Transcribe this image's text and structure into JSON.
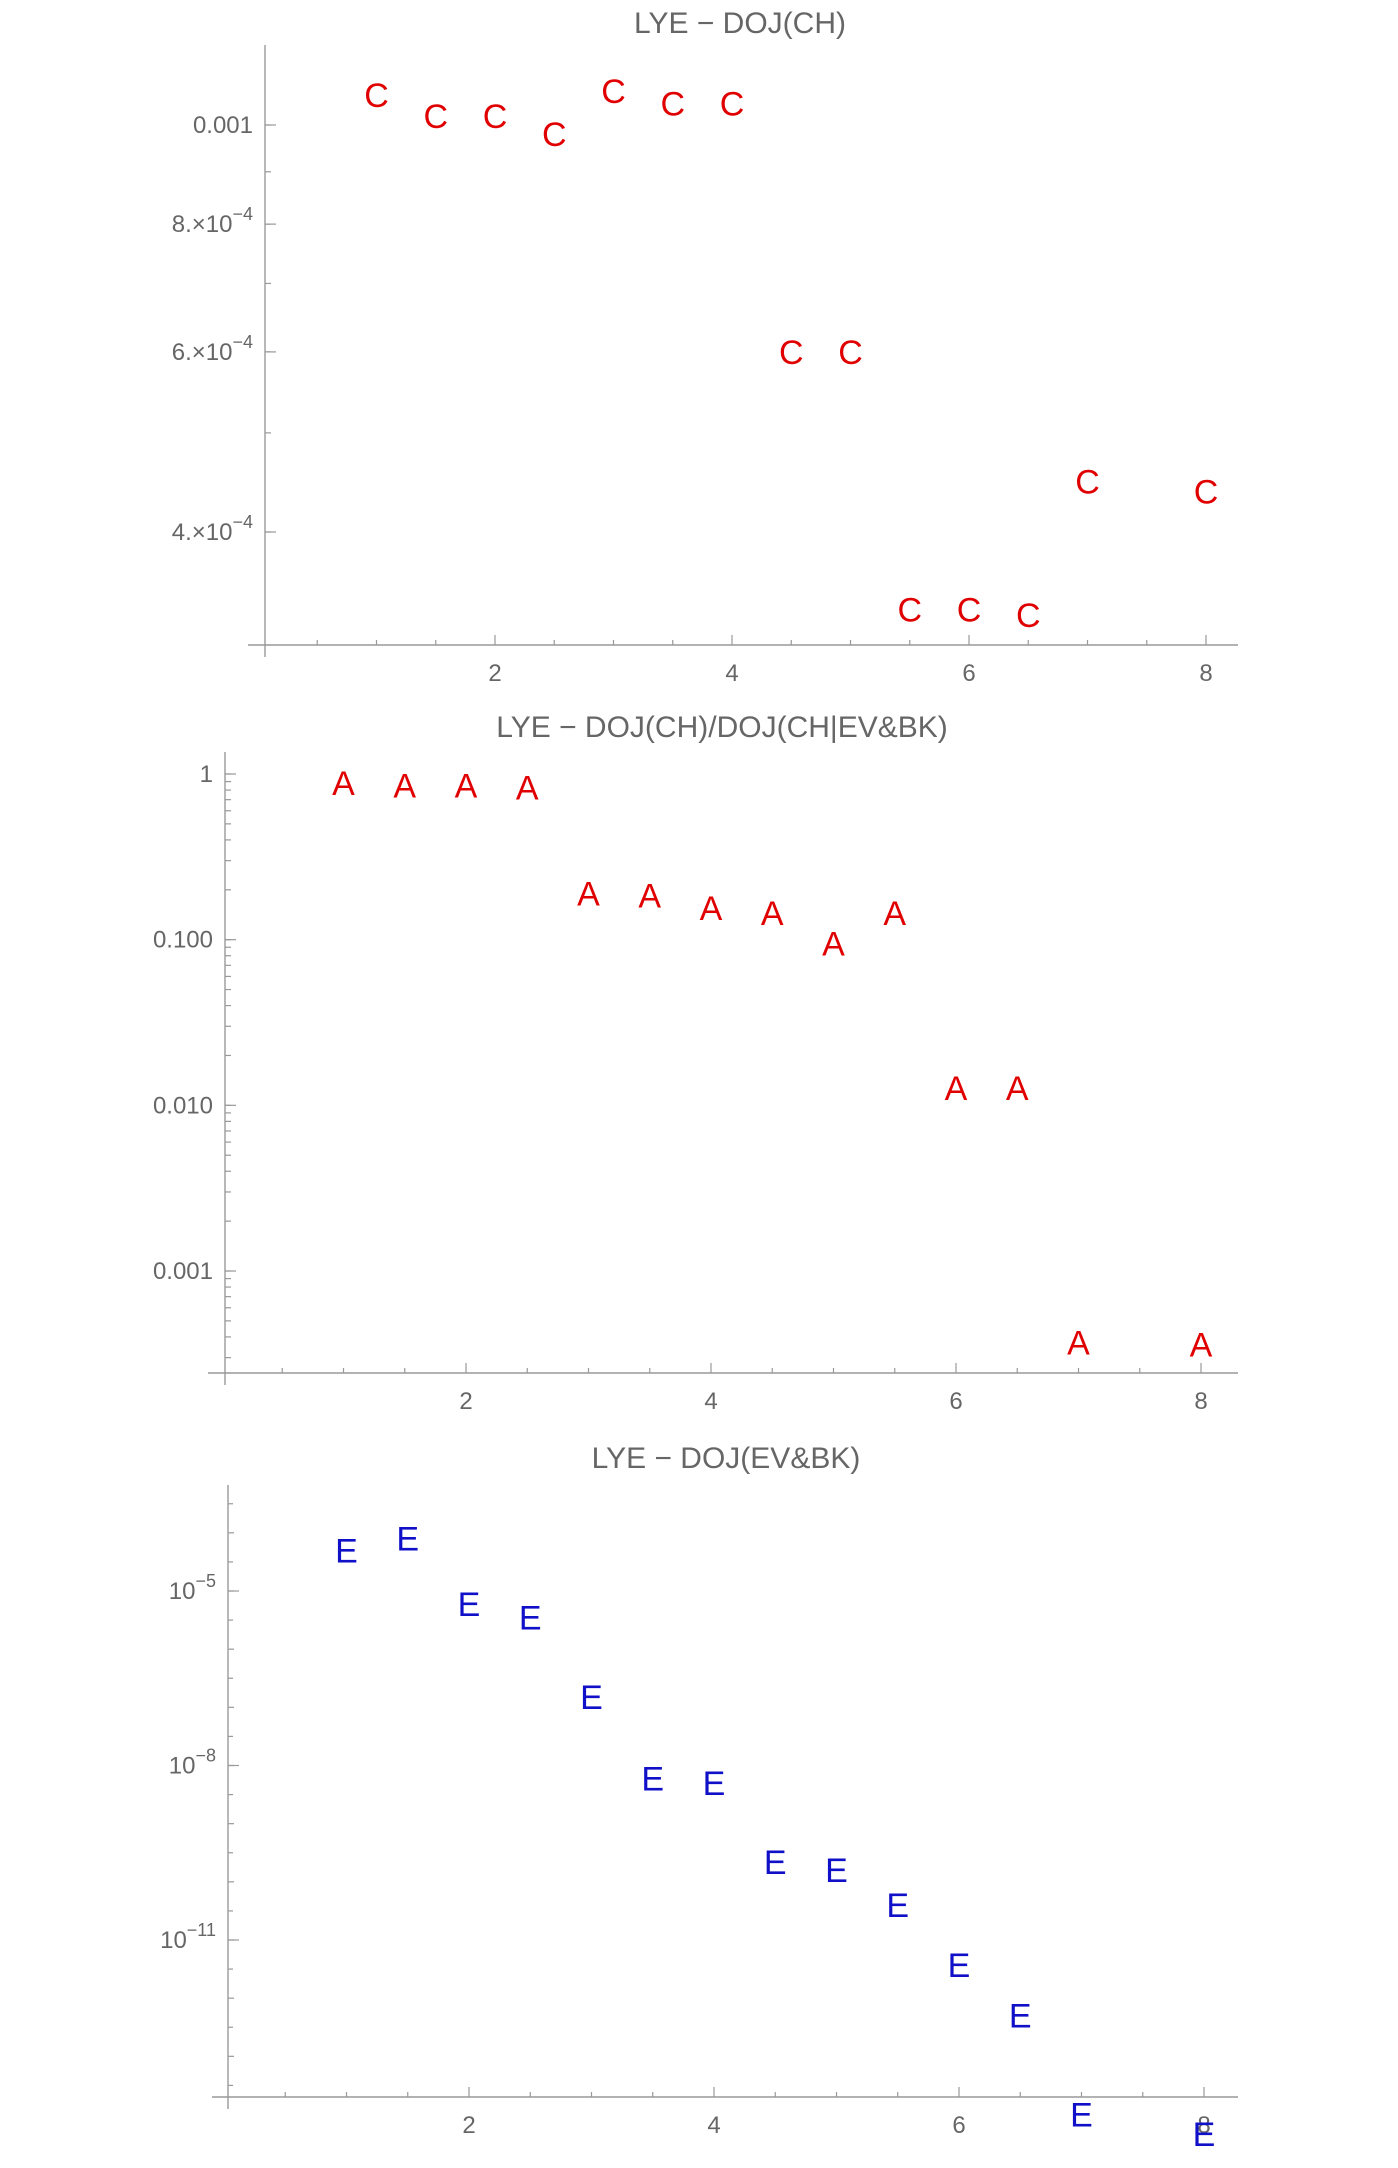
{
  "chart_data": [
    {
      "type": "scatter",
      "title": "LYE − DOJ(CH)",
      "marker": "C",
      "color": "#e00000",
      "yscale": "log",
      "x": [
        1,
        1.5,
        2,
        2.5,
        3,
        3.5,
        4,
        4.5,
        5,
        5.5,
        6,
        6.5,
        7,
        8
      ],
      "y": [
        0.00107,
        0.00102,
        0.00102,
        0.00098,
        0.00108,
        0.00105,
        0.00105,
        0.0006,
        0.0006,
        0.000336,
        0.000336,
        0.000332,
        0.000448,
        0.000438
      ],
      "xticks": [
        {
          "v": 2,
          "label": "2"
        },
        {
          "v": 4,
          "label": "4"
        },
        {
          "v": 6,
          "label": "6"
        },
        {
          "v": 8,
          "label": "8"
        }
      ],
      "yticks": [
        {
          "v": 0.001,
          "base": "0.001"
        },
        {
          "v": 0.0008,
          "base": "8.×10",
          "exp": "−4"
        },
        {
          "v": 0.0006,
          "base": "6.×10",
          "exp": "−4"
        },
        {
          "v": 0.0004,
          "base": "4.×10",
          "exp": "−4"
        }
      ]
    },
    {
      "type": "scatter",
      "title": "LYE − DOJ(CH)/DOJ(CH|EV&BK)",
      "marker": "A",
      "color": "#e00000",
      "yscale": "log",
      "x": [
        1,
        1.5,
        2,
        2.5,
        3,
        3.5,
        4,
        4.5,
        5,
        5.5,
        6,
        6.5,
        7,
        8
      ],
      "y": [
        0.88,
        0.85,
        0.85,
        0.83,
        0.19,
        0.185,
        0.155,
        0.145,
        0.095,
        0.145,
        0.0127,
        0.0127,
        0.00037,
        0.00036
      ],
      "xticks": [
        {
          "v": 2,
          "label": "2"
        },
        {
          "v": 4,
          "label": "4"
        },
        {
          "v": 6,
          "label": "6"
        },
        {
          "v": 8,
          "label": "8"
        }
      ],
      "yticks": [
        {
          "v": 1,
          "base": "1"
        },
        {
          "v": 0.1,
          "base": "0.100"
        },
        {
          "v": 0.01,
          "base": "0.010"
        },
        {
          "v": 0.001,
          "base": "0.001"
        }
      ]
    },
    {
      "type": "scatter",
      "title": "LYE − DOJ(EV&BK)",
      "marker": "E",
      "color": "#1010c8",
      "yscale": "log",
      "x": [
        1,
        1.5,
        2,
        2.5,
        3,
        3.5,
        4,
        4.5,
        5,
        5.5,
        6,
        6.5,
        7,
        8
      ],
      "y": [
        5e-05,
        8e-05,
        6e-06,
        3.5e-06,
        1.5e-07,
        6e-09,
        5e-09,
        2.2e-10,
        1.6e-10,
        4e-11,
        3.7e-12,
        5e-13,
        1e-14,
        4.6e-15
      ],
      "xticks": [
        {
          "v": 2,
          "label": "2"
        },
        {
          "v": 4,
          "label": "4"
        },
        {
          "v": 6,
          "label": "6"
        },
        {
          "v": 8,
          "label": "8"
        }
      ],
      "yticks": [
        {
          "v": 1e-05,
          "base": "10",
          "exp": "−5"
        },
        {
          "v": 1e-08,
          "base": "10",
          "exp": "−8"
        },
        {
          "v": 1e-11,
          "base": "10",
          "exp": "−11"
        }
      ]
    }
  ]
}
